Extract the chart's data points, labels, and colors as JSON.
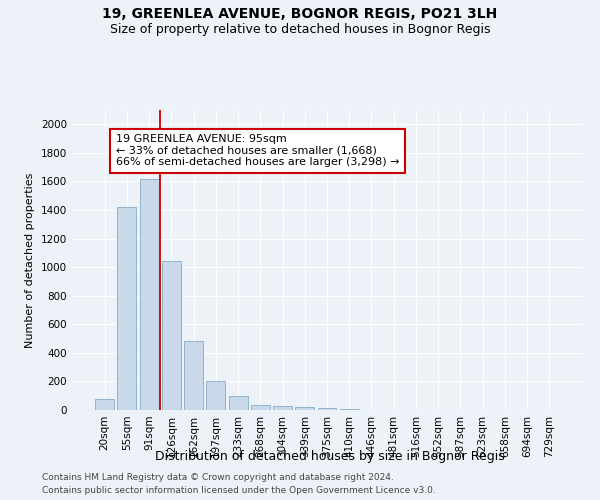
{
  "title": "19, GREENLEA AVENUE, BOGNOR REGIS, PO21 3LH",
  "subtitle": "Size of property relative to detached houses in Bognor Regis",
  "xlabel": "Distribution of detached houses by size in Bognor Regis",
  "ylabel": "Number of detached properties",
  "categories": [
    "20sqm",
    "55sqm",
    "91sqm",
    "126sqm",
    "162sqm",
    "197sqm",
    "233sqm",
    "268sqm",
    "304sqm",
    "339sqm",
    "375sqm",
    "410sqm",
    "446sqm",
    "481sqm",
    "516sqm",
    "552sqm",
    "587sqm",
    "623sqm",
    "658sqm",
    "694sqm",
    "729sqm"
  ],
  "values": [
    75,
    1420,
    1620,
    1040,
    480,
    200,
    100,
    35,
    25,
    20,
    15,
    5,
    0,
    0,
    0,
    0,
    0,
    0,
    0,
    0,
    0
  ],
  "bar_color": "#c9d9ea",
  "bar_edge_color": "#90b4cc",
  "vline_color": "#cc0000",
  "annotation_line1": "19 GREENLEA AVENUE: 95sqm",
  "annotation_line2": "← 33% of detached houses are smaller (1,668)",
  "annotation_line3": "66% of semi-detached houses are larger (3,298) →",
  "annotation_box_color": "#ffffff",
  "annotation_box_edge": "#cc0000",
  "ylim": [
    0,
    2100
  ],
  "yticks": [
    0,
    200,
    400,
    600,
    800,
    1000,
    1200,
    1400,
    1600,
    1800,
    2000
  ],
  "bg_color": "#edf2f8",
  "plot_bg_color": "#edf2f8",
  "grid_color": "#ffffff",
  "footer_line1": "Contains HM Land Registry data © Crown copyright and database right 2024.",
  "footer_line2": "Contains public sector information licensed under the Open Government Licence v3.0.",
  "title_fontsize": 10,
  "subtitle_fontsize": 9,
  "xlabel_fontsize": 9,
  "ylabel_fontsize": 8,
  "tick_fontsize": 7.5,
  "annotation_fontsize": 8,
  "footer_fontsize": 6.5
}
